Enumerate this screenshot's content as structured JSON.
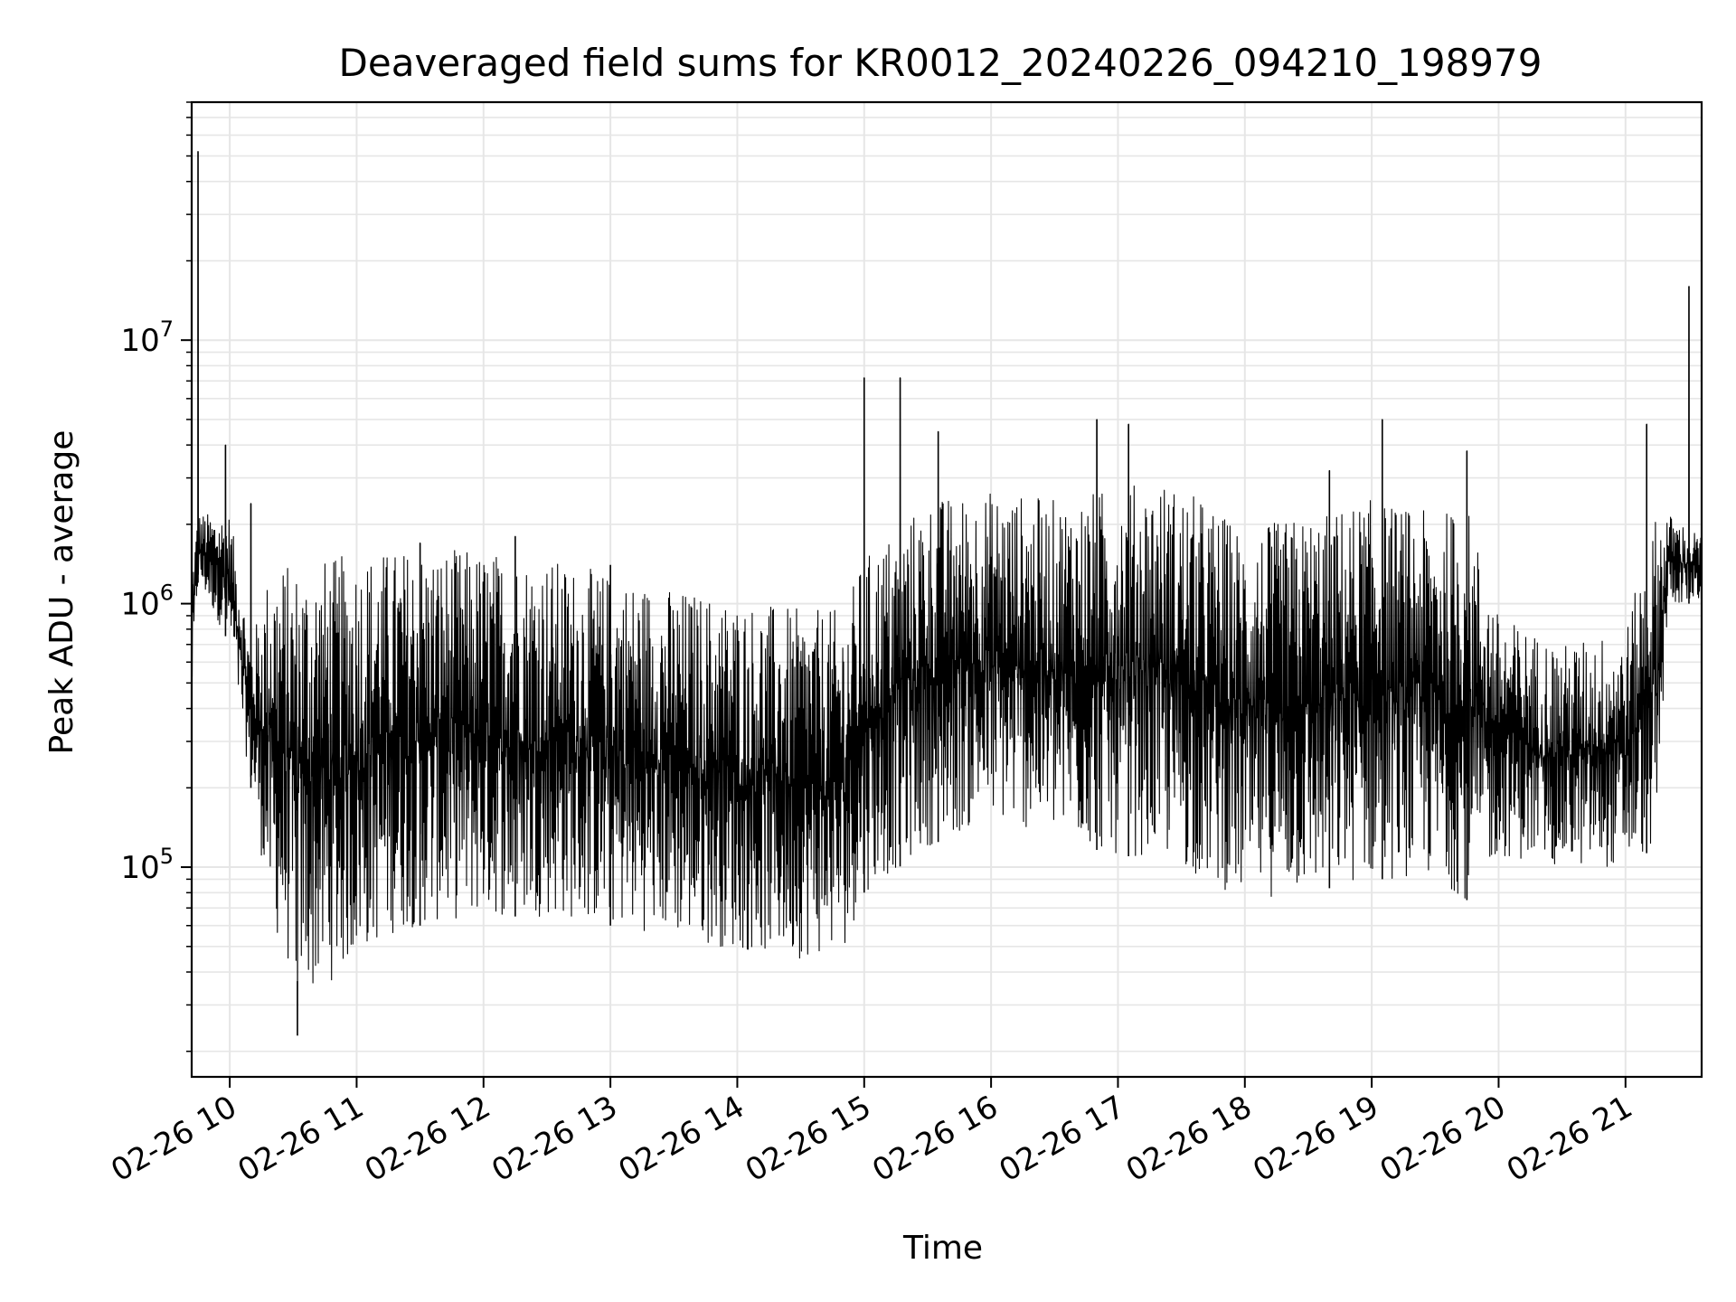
{
  "chart_data": {
    "type": "line",
    "title": "Deaveraged field sums for KR0012_20240226_094210_198979",
    "xlabel": "Time",
    "ylabel": "Peak ADU - average",
    "x_ticks": [
      "02-26 10",
      "02-26 11",
      "02-26 12",
      "02-26 13",
      "02-26 14",
      "02-26 15",
      "02-26 16",
      "02-26 17",
      "02-26 18",
      "02-26 19",
      "02-26 20",
      "02-26 21"
    ],
    "xlim": [
      "2024-02-26 09:42",
      "2024-02-26 21:36"
    ],
    "y_scale": "log",
    "ylim": [
      16000,
      80000000
    ],
    "y_ticks": [
      {
        "value": 100000,
        "base": "10",
        "exp": "5"
      },
      {
        "value": 1000000,
        "base": "10",
        "exp": "6"
      },
      {
        "value": 10000000,
        "base": "10",
        "exp": "7"
      }
    ],
    "grid": true,
    "line_color": "#000000",
    "grid_color": "#e6e6e6",
    "envelope_note_times": [
      "09:42",
      "09:45",
      "10:00",
      "10:10",
      "10:20",
      "10:30",
      "10:40",
      "10:50",
      "11:00",
      "11:15",
      "11:30",
      "12:00",
      "12:30",
      "13:00",
      "13:30",
      "14:00",
      "14:30",
      "14:50",
      "15:00",
      "15:30",
      "16:00",
      "16:30",
      "17:00",
      "17:20",
      "17:40",
      "18:00",
      "18:30",
      "19:00",
      "19:30",
      "19:45",
      "20:00",
      "20:30",
      "21:00",
      "21:15",
      "21:20",
      "21:36"
    ],
    "series": [
      {
        "peaks": [
          {
            "time": "09:45",
            "value": 52000000
          },
          {
            "time": "09:58",
            "value": 4000000
          },
          {
            "time": "10:10",
            "value": 2400000
          },
          {
            "time": "11:30",
            "value": 1700000
          },
          {
            "time": "12:15",
            "value": 1800000
          },
          {
            "time": "13:00",
            "value": 1400000
          },
          {
            "time": "15:00",
            "value": 7200000
          },
          {
            "time": "15:17",
            "value": 7200000
          },
          {
            "time": "15:35",
            "value": 4500000
          },
          {
            "time": "16:50",
            "value": 5000000
          },
          {
            "time": "17:05",
            "value": 4800000
          },
          {
            "time": "18:40",
            "value": 3200000
          },
          {
            "time": "19:05",
            "value": 5000000
          },
          {
            "time": "19:45",
            "value": 3800000
          },
          {
            "time": "21:10",
            "value": 4800000
          },
          {
            "time": "21:30",
            "value": 16000000
          }
        ],
        "troughs": [
          {
            "time": "10:32",
            "value": 23000
          }
        ],
        "upper_envelope": [
          1400000,
          2200000,
          2200000,
          700000,
          1500000,
          1400000,
          1500000,
          1500000,
          1600000,
          1600000,
          1650000,
          1600000,
          1500000,
          1300000,
          1150000,
          1050000,
          950000,
          950000,
          1500000,
          2500000,
          2700000,
          2500000,
          2800000,
          3000000,
          2500000,
          1900000,
          2200000,
          2500000,
          2200000,
          2400000,
          900000,
          700000,
          800000,
          2300000,
          2200000,
          1800000
        ],
        "lower_envelope": [
          400000,
          1200000,
          700000,
          200000,
          60000,
          38000,
          33000,
          38000,
          45000,
          55000,
          60000,
          65000,
          65000,
          60000,
          55000,
          48000,
          45000,
          48000,
          80000,
          120000,
          150000,
          130000,
          110000,
          110000,
          90000,
          75000,
          80000,
          90000,
          90000,
          75000,
          110000,
          100000,
          100000,
          120000,
          1000000,
          1000000
        ]
      }
    ]
  }
}
